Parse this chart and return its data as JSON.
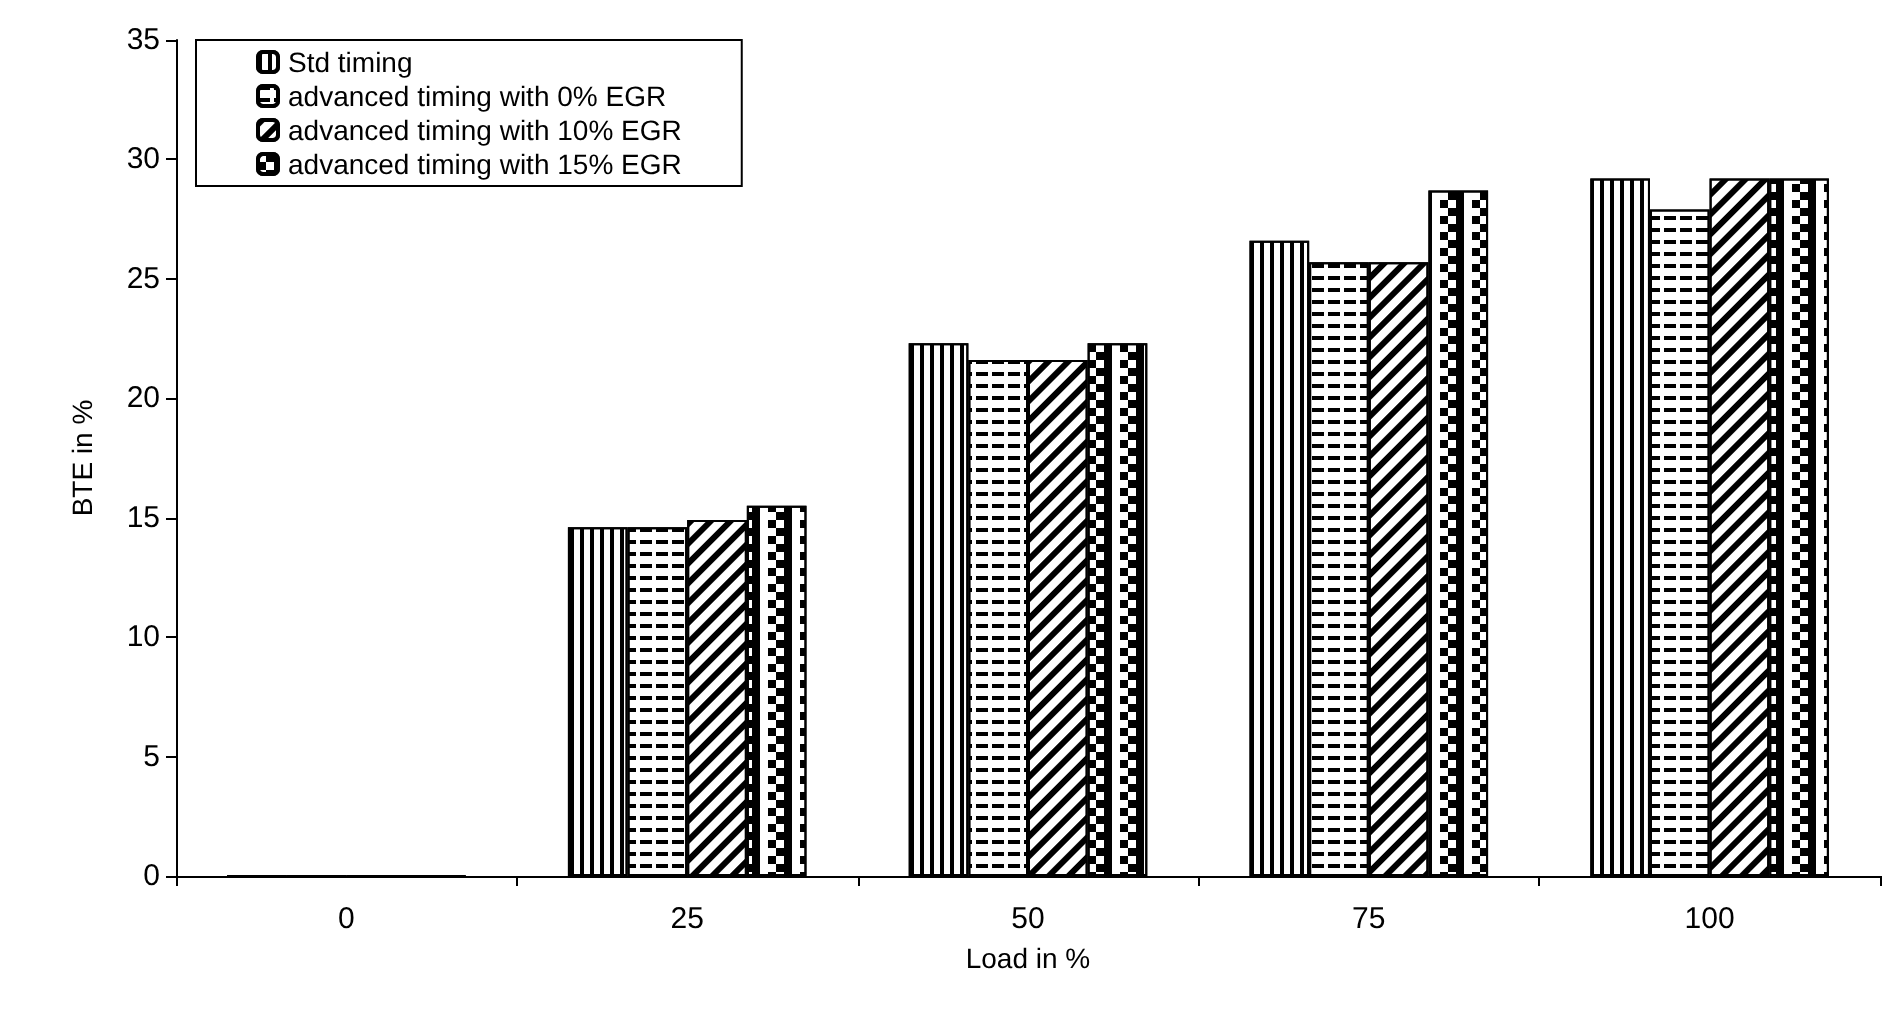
{
  "chart_data": {
    "type": "bar",
    "xlabel": "Load in %",
    "ylabel": "BTE in %",
    "categories": [
      "0",
      "25",
      "50",
      "75",
      "100"
    ],
    "series": [
      {
        "name": "Std timing",
        "color": "#000000",
        "values": [
          0,
          14.6,
          22.3,
          26.6,
          29.2
        ]
      },
      {
        "name": "advanced timing with 0% EGR",
        "color": "#000000",
        "values": [
          0,
          14.6,
          21.6,
          25.7,
          27.9
        ]
      },
      {
        "name": "advanced timing with 10% EGR",
        "color": "#000000",
        "values": [
          0,
          14.9,
          21.6,
          25.7,
          29.2
        ]
      },
      {
        "name": "advanced timing with 15% EGR",
        "color": "#000000",
        "values": [
          0,
          15.5,
          22.3,
          28.7,
          29.2
        ]
      }
    ],
    "ylim": [
      0,
      35
    ],
    "yticks": [
      0,
      5,
      10,
      15,
      20,
      25,
      30,
      35
    ],
    "grid": false,
    "legend": "top left"
  }
}
